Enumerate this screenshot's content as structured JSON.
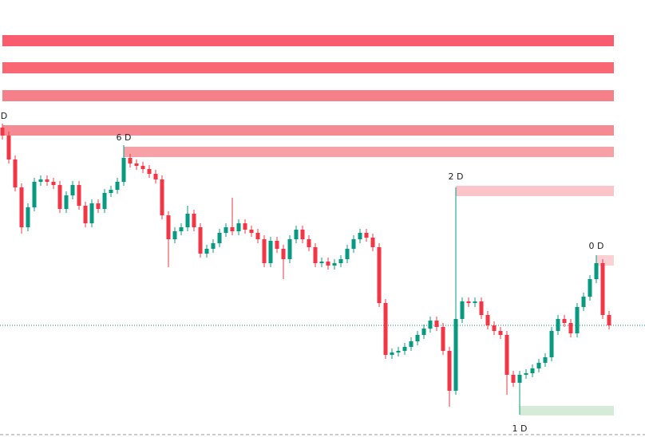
{
  "chart_data": {
    "type": "candlestick",
    "ylim": [
      0,
      548
    ],
    "up_color": "#089981",
    "down_color": "#f23645",
    "price_line_color": "#089981",
    "open": [
      388,
      378,
      348,
      313,
      263,
      288,
      320,
      323,
      320,
      316,
      286,
      303,
      316,
      290,
      268,
      293,
      286,
      306,
      310,
      320,
      350,
      343,
      340,
      336,
      330,
      323,
      278,
      248,
      258,
      263,
      280,
      263,
      230,
      236,
      243,
      256,
      263,
      258,
      268,
      260,
      256,
      248,
      218,
      246,
      236,
      223,
      248,
      260,
      248,
      238,
      218,
      220,
      215,
      218,
      223,
      236,
      248,
      256,
      250,
      238,
      168,
      103,
      106,
      108,
      113,
      120,
      128,
      136,
      146,
      138,
      108,
      58,
      148,
      170,
      168,
      170,
      153,
      140,
      133,
      128,
      78,
      68,
      78,
      80,
      86,
      93,
      100,
      133,
      148,
      143,
      130,
      163,
      176,
      198,
      218,
      153
    ],
    "high": [
      393,
      383,
      353,
      318,
      293,
      325,
      328,
      328,
      325,
      321,
      308,
      321,
      321,
      295,
      298,
      298,
      311,
      315,
      325,
      366,
      355,
      348,
      345,
      341,
      335,
      328,
      283,
      263,
      268,
      290,
      285,
      268,
      241,
      248,
      261,
      268,
      300,
      273,
      273,
      265,
      261,
      253,
      251,
      251,
      241,
      253,
      265,
      265,
      253,
      243,
      225,
      225,
      223,
      228,
      241,
      253,
      261,
      261,
      255,
      243,
      173,
      111,
      113,
      118,
      125,
      133,
      141,
      151,
      151,
      143,
      113,
      313,
      175,
      175,
      175,
      175,
      158,
      145,
      138,
      133,
      83,
      83,
      85,
      91,
      98,
      105,
      138,
      153,
      153,
      148,
      168,
      181,
      203,
      228,
      223,
      158
    ],
    "low": [
      373,
      343,
      308,
      255,
      258,
      283,
      315,
      315,
      311,
      281,
      281,
      298,
      285,
      263,
      263,
      281,
      281,
      301,
      305,
      315,
      338,
      335,
      331,
      325,
      318,
      273,
      213,
      243,
      253,
      258,
      258,
      225,
      225,
      231,
      238,
      251,
      253,
      253,
      255,
      251,
      243,
      213,
      213,
      231,
      198,
      218,
      243,
      243,
      233,
      213,
      213,
      210,
      210,
      213,
      218,
      231,
      243,
      245,
      233,
      163,
      98,
      98,
      101,
      103,
      108,
      115,
      123,
      131,
      133,
      103,
      38,
      53,
      143,
      163,
      163,
      148,
      135,
      128,
      123,
      53,
      63,
      28,
      73,
      75,
      81,
      88,
      95,
      128,
      138,
      125,
      125,
      158,
      171,
      193,
      148,
      135
    ],
    "close": [
      378,
      348,
      313,
      263,
      288,
      320,
      323,
      320,
      316,
      286,
      303,
      316,
      290,
      268,
      293,
      286,
      306,
      310,
      320,
      350,
      343,
      340,
      336,
      330,
      323,
      278,
      248,
      258,
      263,
      280,
      263,
      230,
      236,
      243,
      256,
      263,
      258,
      268,
      260,
      256,
      248,
      218,
      246,
      236,
      223,
      248,
      260,
      248,
      238,
      218,
      220,
      215,
      218,
      223,
      236,
      248,
      256,
      250,
      238,
      168,
      103,
      106,
      108,
      113,
      120,
      128,
      136,
      146,
      138,
      108,
      58,
      148,
      170,
      168,
      170,
      153,
      140,
      133,
      128,
      78,
      68,
      78,
      80,
      86,
      93,
      100,
      133,
      148,
      143,
      130,
      163,
      176,
      198,
      218,
      153,
      140
    ],
    "zones": [
      {
        "top": 504,
        "bottom": 490,
        "start": 0,
        "label": null,
        "color": "#f95c6e"
      },
      {
        "top": 470,
        "bottom": 456,
        "start": 0,
        "label": null,
        "color": "#f96775"
      },
      {
        "top": 435,
        "bottom": 421,
        "start": 0,
        "label": null,
        "color": "#f58089"
      },
      {
        "top": 391,
        "bottom": 378,
        "start": 0,
        "label": "D",
        "color": "#f58a93"
      },
      {
        "top": 364,
        "bottom": 351,
        "start": 19,
        "label": "6 D",
        "color": "#f7a0a6"
      },
      {
        "top": 315,
        "bottom": 302,
        "start": 71,
        "label": "2 D",
        "color": "#fbc4c8"
      },
      {
        "top": 228,
        "bottom": 215,
        "start": 93,
        "label": "0 D",
        "color": "#fdd0d3"
      },
      {
        "top": 39,
        "bottom": 27,
        "start": 81,
        "label": "1 D",
        "color": "#d5ead7"
      }
    ]
  }
}
